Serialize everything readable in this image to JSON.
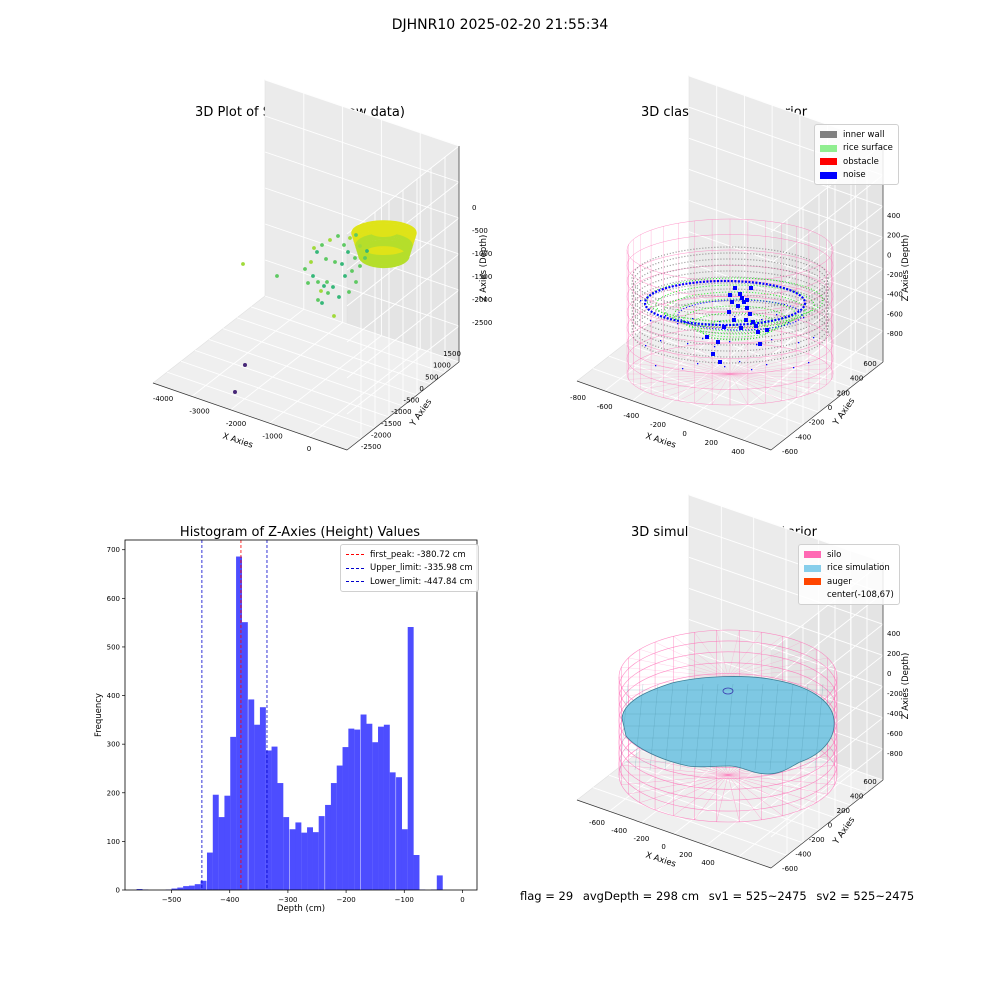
{
  "figure_title": "DJHNR10 2025-02-20 21:55:34",
  "footer": {
    "flag": "flag = 29",
    "avg_depth": "avgDepth = 298 cm",
    "sv1": "sv1 = 525~2475",
    "sv2": "sv2 = 525~2475"
  },
  "chart_data": [
    {
      "type": "scatter",
      "title": "3D Plot of Silo Interior(row data)",
      "xlabel": "X Axies",
      "ylabel": "Y Axies",
      "zlabel": "Z Axies (Depth)",
      "x_ticks": [
        "-4000",
        "-3000",
        "-2000",
        "-1000",
        "0"
      ],
      "y_ticks": [
        "-2500",
        "-2000",
        "-1500",
        "-1000",
        "-500",
        "0",
        "500",
        "1000",
        "1500"
      ],
      "z_ticks": [
        "0",
        "-500",
        "-1000",
        "-1500",
        "-2000",
        "-2500"
      ],
      "xlim": [
        -4300,
        500
      ],
      "ylim": [
        -2700,
        1700
      ],
      "zlim": [
        -2800,
        100
      ],
      "grid": true,
      "colors": {
        "dense_cluster": "#dfe318",
        "dense_cluster_low": "#b5de2b",
        "scatter": "#5ec962",
        "scatter_light": "#a0da39",
        "scatter_dark": "#35b779",
        "outlier": "#482878"
      }
    },
    {
      "type": "scatter",
      "title": "3D classify of Silo Interior",
      "xlabel": "X Axies",
      "ylabel": "Y Axies",
      "zlabel": "Z Axies (Depth)",
      "x_ticks": [
        "-800",
        "-600",
        "-400",
        "-200",
        "0",
        "200",
        "400"
      ],
      "y_ticks": [
        "-600",
        "-400",
        "-200",
        "0",
        "200",
        "400",
        "600"
      ],
      "z_ticks": [
        "400",
        "200",
        "0",
        "-200",
        "-400",
        "-600",
        "-800"
      ],
      "legend": [
        {
          "label": "inner wall",
          "color": "#808080"
        },
        {
          "label": "rice surface",
          "color": "#90ee90"
        },
        {
          "label": "obstacle",
          "color": "#ff0000"
        },
        {
          "label": "noise",
          "color": "#0000ff"
        }
      ],
      "legend_position": "top-right",
      "grid": true,
      "colors": {
        "silo_wireframe": "#ff69b4",
        "inner_wall": "#808080",
        "rice_surface": "#22ee22",
        "noise": "#0000ff"
      }
    },
    {
      "type": "bar",
      "title": "Histogram of Z-Axies (Height) Values",
      "xlabel": "Depth (cm)",
      "ylabel": "Frequency",
      "x_ticks": [
        -500,
        -400,
        -300,
        -200,
        -100,
        0
      ],
      "y_ticks": [
        0,
        100,
        200,
        300,
        400,
        500,
        600,
        700
      ],
      "xlim": [
        -580,
        25
      ],
      "ylim": [
        0,
        720
      ],
      "bin_width": 10.2,
      "bars": [
        {
          "x": -555,
          "value": 2
        },
        {
          "x": -545,
          "value": 1
        },
        {
          "x": -535,
          "value": 0
        },
        {
          "x": -525,
          "value": 0
        },
        {
          "x": -515,
          "value": 0
        },
        {
          "x": -505,
          "value": 1
        },
        {
          "x": -495,
          "value": 3
        },
        {
          "x": -485,
          "value": 5
        },
        {
          "x": -475,
          "value": 8
        },
        {
          "x": -465,
          "value": 9
        },
        {
          "x": -455,
          "value": 12
        },
        {
          "x": -445,
          "value": 19
        },
        {
          "x": -434,
          "value": 77
        },
        {
          "x": -424,
          "value": 196
        },
        {
          "x": -414,
          "value": 150
        },
        {
          "x": -404,
          "value": 194
        },
        {
          "x": -394,
          "value": 315
        },
        {
          "x": -384,
          "value": 686
        },
        {
          "x": -374,
          "value": 551
        },
        {
          "x": -363,
          "value": 392
        },
        {
          "x": -353,
          "value": 340
        },
        {
          "x": -343,
          "value": 376
        },
        {
          "x": -333,
          "value": 287
        },
        {
          "x": -323,
          "value": 295
        },
        {
          "x": -313,
          "value": 220
        },
        {
          "x": -303,
          "value": 150
        },
        {
          "x": -292,
          "value": 125
        },
        {
          "x": -282,
          "value": 139
        },
        {
          "x": -272,
          "value": 118
        },
        {
          "x": -262,
          "value": 129
        },
        {
          "x": -252,
          "value": 119
        },
        {
          "x": -242,
          "value": 152
        },
        {
          "x": -231,
          "value": 175
        },
        {
          "x": -221,
          "value": 220
        },
        {
          "x": -211,
          "value": 256
        },
        {
          "x": -201,
          "value": 294
        },
        {
          "x": -191,
          "value": 332
        },
        {
          "x": -181,
          "value": 330
        },
        {
          "x": -170,
          "value": 361
        },
        {
          "x": -160,
          "value": 342
        },
        {
          "x": -150,
          "value": 304
        },
        {
          "x": -140,
          "value": 336
        },
        {
          "x": -130,
          "value": 340
        },
        {
          "x": -120,
          "value": 242
        },
        {
          "x": -109,
          "value": 232
        },
        {
          "x": -99,
          "value": 125
        },
        {
          "x": -89,
          "value": 541
        },
        {
          "x": -79,
          "value": 72
        },
        {
          "x": -69,
          "value": 1
        },
        {
          "x": -59,
          "value": 0
        },
        {
          "x": -49,
          "value": 1
        },
        {
          "x": -39,
          "value": 30
        }
      ],
      "bar_color": "#4d4dff",
      "vlines": [
        {
          "label": "first_peak: -380.72 cm",
          "x": -380.72,
          "color": "#ff0000"
        },
        {
          "label": "Upper_limit: -335.98 cm",
          "x": -335.98,
          "color": "#0000cc"
        },
        {
          "label": "Lower_limit: -447.84 cm",
          "x": -447.84,
          "color": "#0000cc"
        }
      ],
      "legend_position": "top-right",
      "grid": false
    },
    {
      "type": "surface",
      "title": "3D simulation of Silo Interior",
      "xlabel": "X Axies",
      "ylabel": "Y Axies",
      "zlabel": "Z Axies (Depth)",
      "x_ticks": [
        "-600",
        "-400",
        "-200",
        "0",
        "200",
        "400"
      ],
      "y_ticks": [
        "-600",
        "-400",
        "-200",
        "0",
        "200",
        "400",
        "600"
      ],
      "z_ticks": [
        "400",
        "200",
        "0",
        "-200",
        "-400",
        "-600",
        "-800"
      ],
      "legend": [
        {
          "label": "silo",
          "color": "#ff69b4"
        },
        {
          "label": "rice simulation",
          "color": "#87ceeb"
        },
        {
          "label": "auger",
          "color": "#ff4500"
        },
        {
          "label": "center(-108,67)",
          "color": "none"
        }
      ],
      "legend_position": "top-right",
      "grid": true,
      "colors": {
        "silo_wireframe": "#ff69b4",
        "rice_surface": "#7ec8e3",
        "rice_edge": "#3b7f96"
      }
    }
  ]
}
